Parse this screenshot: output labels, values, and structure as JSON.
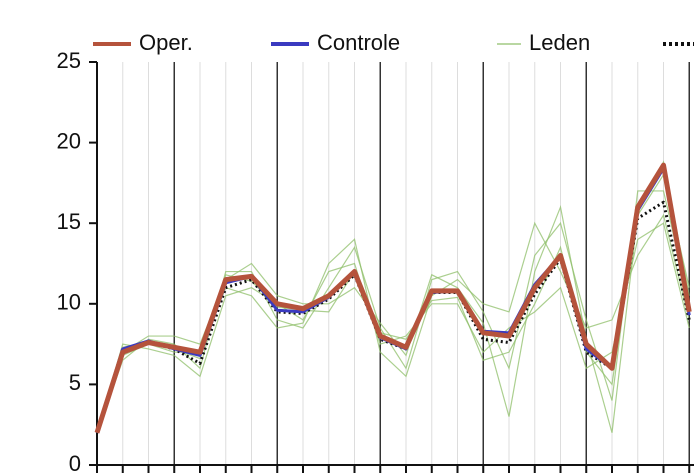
{
  "chart_data": {
    "type": "line",
    "categories": [
      null,
      null,
      null,
      null,
      null,
      null,
      null,
      null,
      null,
      null,
      null,
      null,
      null,
      null,
      null,
      null,
      null,
      null,
      null,
      null,
      null,
      null,
      null,
      null
    ],
    "ylim": [
      0,
      25
    ],
    "yticks": [
      0,
      5,
      10,
      15,
      20,
      25
    ],
    "series": [
      {
        "name": "Oper.",
        "color": "#b5533c",
        "values": [
          2,
          7,
          7.6,
          7.3,
          7,
          11.5,
          11.7,
          10,
          9.7,
          10.5,
          12,
          8,
          7.3,
          10.8,
          10.8,
          8.2,
          8,
          11,
          13,
          7.5,
          6,
          16,
          18.6,
          9.5
        ]
      },
      {
        "name": "Controle",
        "color": "#3a3ac0",
        "values": [
          2,
          7.2,
          7.7,
          7.2,
          6.8,
          11.3,
          11.7,
          9.6,
          9.5,
          10.4,
          12,
          7.9,
          7.2,
          10.7,
          10.8,
          8.3,
          8.2,
          11.2,
          13,
          7.2,
          6,
          15.8,
          18.4,
          9.3
        ]
      },
      {
        "name": "Leden",
        "color": "#8fbf6a",
        "lines": [
          [
            2,
            6.5,
            7.8,
            7.5,
            6,
            12,
            12,
            9,
            8.5,
            11,
            13.5,
            8.5,
            6,
            11.5,
            12,
            9.5,
            6,
            13,
            15,
            9,
            4,
            17,
            17,
            10
          ],
          [
            2,
            7.5,
            7.2,
            6.8,
            5.5,
            10.5,
            11,
            10,
            9,
            12,
            12.5,
            7.5,
            8,
            10,
            10,
            7,
            8.5,
            9.5,
            11,
            6,
            7,
            14,
            15,
            8.5
          ],
          [
            2,
            7,
            8,
            8,
            7.5,
            11.5,
            12.5,
            10.5,
            10,
            10,
            11,
            8.8,
            6.8,
            11.8,
            11,
            8.8,
            3,
            12,
            16,
            7.8,
            2,
            15.5,
            18,
            11
          ],
          [
            2,
            6.8,
            7.5,
            7,
            7,
            11,
            10.5,
            8.5,
            8.8,
            12.5,
            14,
            7,
            5.5,
            10.5,
            11.5,
            10,
            9.5,
            15,
            12,
            8.5,
            9,
            13,
            15.5,
            9
          ],
          [
            2,
            7.3,
            7.6,
            7.2,
            6.6,
            11.8,
            11.4,
            9.8,
            9.6,
            9.5,
            12,
            8.2,
            7.8,
            10.2,
            10.4,
            6.5,
            7,
            10,
            13.5,
            7,
            5,
            16,
            18.8,
            10.5
          ]
        ]
      },
      {
        "color": "#111111",
        "dashed": true,
        "values": [
          2,
          7.2,
          7.6,
          7.2,
          6.3,
          11,
          11.5,
          9.5,
          9.4,
          10.3,
          11.8,
          7.8,
          7.2,
          10.7,
          10.7,
          7.8,
          7.6,
          10.6,
          12.8,
          7,
          6,
          15.3,
          16.3,
          9
        ]
      }
    ]
  }
}
